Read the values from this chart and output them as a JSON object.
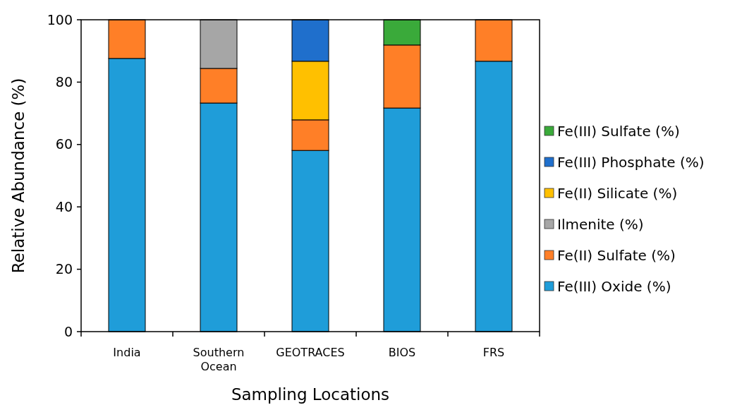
{
  "chart_data": {
    "type": "bar",
    "stacked": true,
    "xlabel": "Sampling Locations",
    "ylabel": "Relative Abundance (%)",
    "categories": [
      "India",
      "Southern Ocean",
      "GEOTRACES",
      "BIOS",
      "FRS"
    ],
    "series": [
      {
        "name": "Fe(III) Oxide (%)",
        "color": "#1f9dd9",
        "values": [
          87.6,
          73.3,
          58.1,
          71.7,
          86.7
        ]
      },
      {
        "name": "Fe(II) Sulfate (%)",
        "color": "#ff7f27",
        "values": [
          12.4,
          11.1,
          9.8,
          20.2,
          13.3
        ]
      },
      {
        "name": "Ilmenite (%)",
        "color": "#a6a6a6",
        "values": [
          0,
          15.6,
          0,
          0,
          0
        ]
      },
      {
        "name": "Fe(II) Silicate (%)",
        "color": "#ffc000",
        "values": [
          0,
          0,
          18.8,
          0,
          0
        ]
      },
      {
        "name": "Fe(III) Phosphate (%)",
        "color": "#1f6fcc",
        "values": [
          0,
          0,
          13.3,
          0,
          0
        ]
      },
      {
        "name": "Fe(III) Sulfate (%)",
        "color": "#3aaa3a",
        "values": [
          0,
          0,
          0,
          8.1,
          0
        ]
      }
    ],
    "ylim": [
      0,
      100
    ],
    "yticks": [
      0,
      20,
      40,
      60,
      80,
      100
    ],
    "grid": false,
    "legend": "right"
  }
}
